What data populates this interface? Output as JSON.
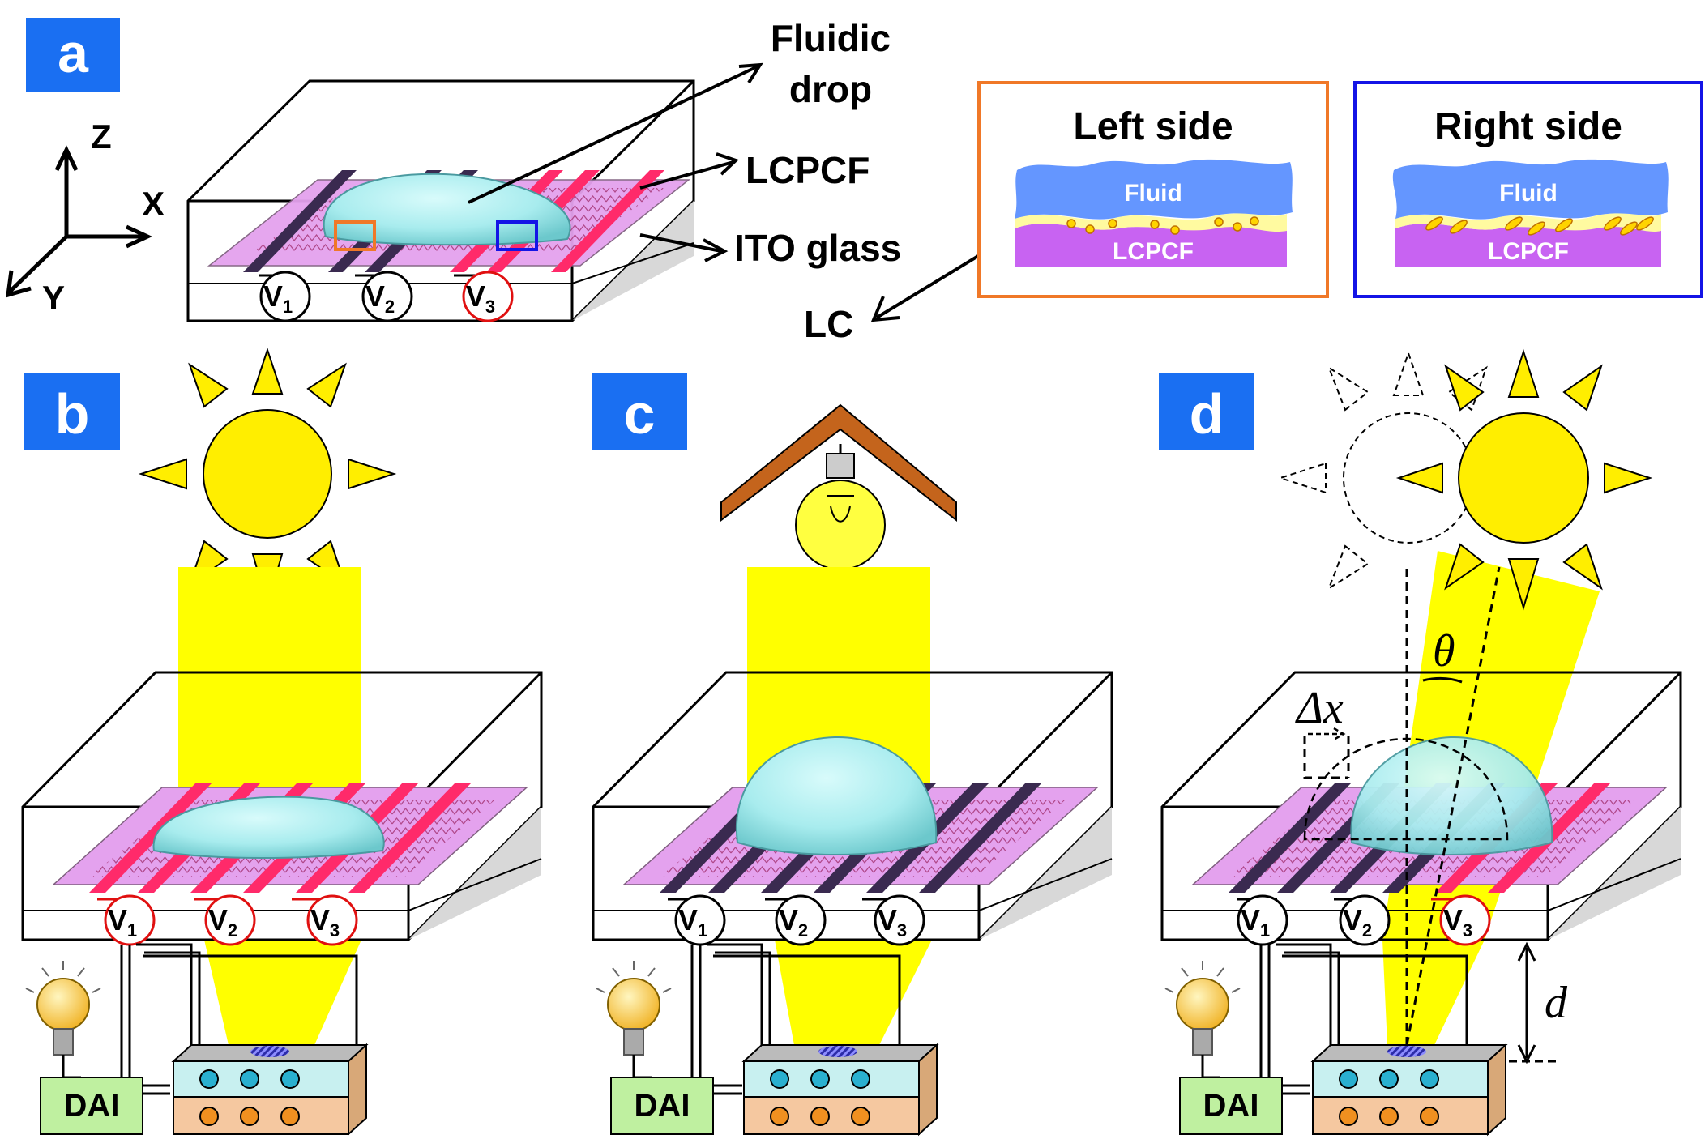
{
  "panel_labels": {
    "a": "a",
    "b": "b",
    "c": "c",
    "d": "d"
  },
  "axes": {
    "z": "Z",
    "x": "X",
    "y": "Y"
  },
  "callouts": {
    "fluidic_drop_line1": "Fluidic",
    "fluidic_drop_line2": "drop",
    "lcpcf": "LCPCF",
    "ito_glass": "ITO glass",
    "lc": "LC"
  },
  "insets": {
    "left_title": "Left side",
    "right_title": "Right side",
    "fluid": "Fluid",
    "lcpcf": "LCPCF"
  },
  "voltages": {
    "v": "V",
    "s1": "1",
    "s2": "2",
    "s3": "3"
  },
  "dai": "DAI",
  "symbols": {
    "theta": "θ",
    "delta_x": "Δx",
    "d": "d"
  },
  "colors": {
    "panel_label_bg": "#1a6ff2",
    "sun": "#ffee00",
    "beam": "#ffff00",
    "lcpcf": "#e4a2ee",
    "electrode_active": "#ff2a6a",
    "electrode_off": "#3a2a50",
    "drop": "#a8ecee",
    "fluid": "#6496ff",
    "inset_lcpcf": "#c863f2",
    "roof": "#c4641c",
    "dai_box": "#bff0a0",
    "orange_frame": "#f07828",
    "blue_frame": "#1414e6"
  }
}
